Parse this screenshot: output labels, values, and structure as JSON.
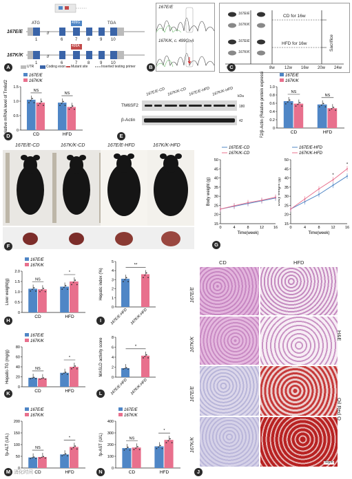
{
  "panelA": {
    "genotype_wt": "167E/E",
    "genotype_ki": "167K/K",
    "atg": "ATG",
    "tga": "TGA",
    "ex_wt": "499G",
    "ex_ki": "499A",
    "exons_wt": [
      "1",
      "6",
      "7",
      "8",
      "9",
      "10"
    ],
    "exons_ki": [
      "1",
      "6",
      "7",
      "8",
      "9",
      "10"
    ],
    "legend_utr": "UTR",
    "legend_coding": "Coding exon",
    "legend_mut": "Mutant site",
    "legend_primer": "Inserted testing primer"
  },
  "panelB": {
    "top": "167E/E",
    "bottom": "167K/K, c. 499G>A"
  },
  "panelC": {
    "cd_label": "CD for 16w",
    "hfd_label": "HFD for 16w",
    "sacrifice": "Sacrifice",
    "mice": [
      "167E/E",
      "167K/K",
      "167E/E",
      "167K/K"
    ],
    "times": [
      "0w",
      "8w",
      "12w",
      "16w",
      "20w",
      "24w"
    ]
  },
  "letters": [
    "A",
    "B",
    "C",
    "D",
    "E",
    "F",
    "G",
    "H",
    "I",
    "J",
    "K",
    "L",
    "M",
    "N"
  ],
  "legend": {
    "wt": "167E/E",
    "ki": "167K/K",
    "wt_color": "#4f86c6",
    "ki_color": "#e8708d"
  },
  "panelE": {
    "cols": [
      "167E/E-CD",
      "167K/K-CD",
      "167E/E-HFD",
      "167K/K-HFD"
    ],
    "rows": [
      "TM6SF2",
      "β-Actin"
    ],
    "kda_unit": "kDa",
    "kda": [
      "180",
      "42"
    ]
  },
  "panelF": {
    "labels": [
      "167E/E-CD",
      "167K/K-CD",
      "167E/E-HFD",
      "167K/K-HFD"
    ]
  },
  "panelJ": {
    "col_labels": [
      "CD",
      "HFD"
    ],
    "row_labels": [
      "167E/E",
      "167K/K",
      "167E/E",
      "167K/K"
    ],
    "stain1": "H&E",
    "stain2": "Oil Red O",
    "scale": "50μm"
  },
  "watermark": "消化时间",
  "chart_data": [
    {
      "id": "D",
      "type": "bar",
      "ylabel": "Relative mRNA level of Tm6sf2",
      "categories": [
        "CD",
        "HFD"
      ],
      "series": [
        {
          "name": "167E/E",
          "values": [
            1.05,
            0.95
          ]
        },
        {
          "name": "167K/K",
          "values": [
            0.95,
            0.8
          ]
        }
      ],
      "ylim": [
        0,
        1.5
      ],
      "yticks": [
        "0",
        "0.5",
        "1.0",
        "1.5"
      ],
      "sig": [
        "NS",
        "NS"
      ]
    },
    {
      "id": "E2",
      "type": "bar",
      "ylabel": "TM6SF2/β-Actin (Relative protein expression)",
      "categories": [
        "CD",
        "HFD"
      ],
      "series": [
        {
          "name": "167E/E",
          "values": [
            0.65,
            0.57
          ]
        },
        {
          "name": "167K/K",
          "values": [
            0.59,
            0.48
          ]
        }
      ],
      "ylim": [
        0,
        1.0
      ],
      "yticks": [
        "0",
        "0.2",
        "0.4",
        "0.6",
        "0.8",
        "1.0"
      ],
      "sig": [
        "NS",
        "NS"
      ]
    },
    {
      "id": "G1",
      "type": "line",
      "xlabel": "Time(week)",
      "ylabel": "Body weight (g)",
      "x": [
        0,
        4,
        8,
        12,
        16
      ],
      "series": [
        {
          "name": "167E/E-CD",
          "values": [
            23,
            24.5,
            26,
            27.5,
            29
          ]
        },
        {
          "name": "167K/K-CD",
          "values": [
            23,
            24.8,
            26.5,
            27.8,
            29.5
          ]
        }
      ],
      "ylim": [
        15,
        50
      ],
      "yticks": [
        "15",
        "20",
        "25",
        "30",
        "35",
        "40",
        "45",
        "50"
      ],
      "xticks": [
        "0",
        "4",
        "8",
        "12",
        "16"
      ]
    },
    {
      "id": "G2",
      "type": "line",
      "xlabel": "Time(week)",
      "ylabel": "Body weight (g)",
      "x": [
        0,
        4,
        8,
        12,
        16
      ],
      "series": [
        {
          "name": "167E/E-HFD",
          "values": [
            23,
            27,
            31,
            36,
            41
          ]
        },
        {
          "name": "167K/K-HFD",
          "values": [
            23,
            28.5,
            34,
            39,
            45
          ]
        }
      ],
      "ylim": [
        15,
        50
      ],
      "yticks": [
        "15",
        "20",
        "25",
        "30",
        "35",
        "40",
        "45",
        "50"
      ],
      "xticks": [
        "0",
        "4",
        "8",
        "12",
        "16"
      ],
      "sig": [
        "*",
        "*"
      ]
    },
    {
      "id": "H",
      "type": "bar",
      "ylabel": "Liver weight(g)",
      "categories": [
        "CD",
        "HFD"
      ],
      "series": [
        {
          "name": "167E/E",
          "values": [
            1.15,
            1.25
          ]
        },
        {
          "name": "167K/K",
          "values": [
            1.12,
            1.5
          ]
        }
      ],
      "ylim": [
        0,
        2.0
      ],
      "yticks": [
        "0",
        "0.5",
        "1.0",
        "1.5",
        "2.0"
      ],
      "sig": [
        "NS",
        "*"
      ]
    },
    {
      "id": "I",
      "type": "bar",
      "ylabel": "Hepatic index (%)",
      "categories": [
        "167E/E-HFD",
        "167K/K-HFD"
      ],
      "series": [
        {
          "name": "",
          "values": [
            3.1,
            3.6
          ]
        }
      ],
      "ylim": [
        0,
        5
      ],
      "yticks": [
        "0",
        "1",
        "2",
        "3",
        "4",
        "5"
      ],
      "sig": [
        "**"
      ]
    },
    {
      "id": "K",
      "type": "bar",
      "ylabel": "Hepatic-TG (mg/g)",
      "categories": [
        "CD",
        "HFD"
      ],
      "series": [
        {
          "name": "167E/E",
          "values": [
            18,
            28
          ]
        },
        {
          "name": "167K/K",
          "values": [
            17,
            40
          ]
        }
      ],
      "ylim": [
        0,
        80
      ],
      "yticks": [
        "0",
        "20",
        "40",
        "60",
        "80"
      ],
      "sig": [
        "NS",
        "*"
      ]
    },
    {
      "id": "L",
      "type": "bar",
      "ylabel": "MASLD activity score",
      "categories": [
        "167E/E-HFD",
        "167K/K-HFD"
      ],
      "series": [
        {
          "name": "",
          "values": [
            1.8,
            4.3
          ]
        }
      ],
      "ylim": [
        0,
        8
      ],
      "yticks": [
        "0",
        "2",
        "4",
        "6",
        "8"
      ],
      "sig": [
        "*"
      ]
    },
    {
      "id": "M",
      "type": "bar",
      "ylabel": "fp-ALT (U/L)",
      "categories": [
        "CD",
        "HFD"
      ],
      "series": [
        {
          "name": "167E/E",
          "values": [
            45,
            58
          ]
        },
        {
          "name": "167K/K",
          "values": [
            47,
            90
          ]
        }
      ],
      "ylim": [
        0,
        200
      ],
      "yticks": [
        "0",
        "50",
        "100",
        "150",
        "200"
      ],
      "sig": [
        "NS",
        "*"
      ]
    },
    {
      "id": "N",
      "type": "bar",
      "ylabel": "fp-AST (U/L)",
      "categories": [
        "CD",
        "HFD"
      ],
      "series": [
        {
          "name": "167E/E",
          "values": [
            170,
            185
          ]
        },
        {
          "name": "167K/K",
          "values": [
            175,
            240
          ]
        }
      ],
      "ylim": [
        0,
        400
      ],
      "yticks": [
        "0",
        "100",
        "200",
        "300",
        "400"
      ],
      "sig": [
        "NS",
        "*"
      ]
    }
  ]
}
